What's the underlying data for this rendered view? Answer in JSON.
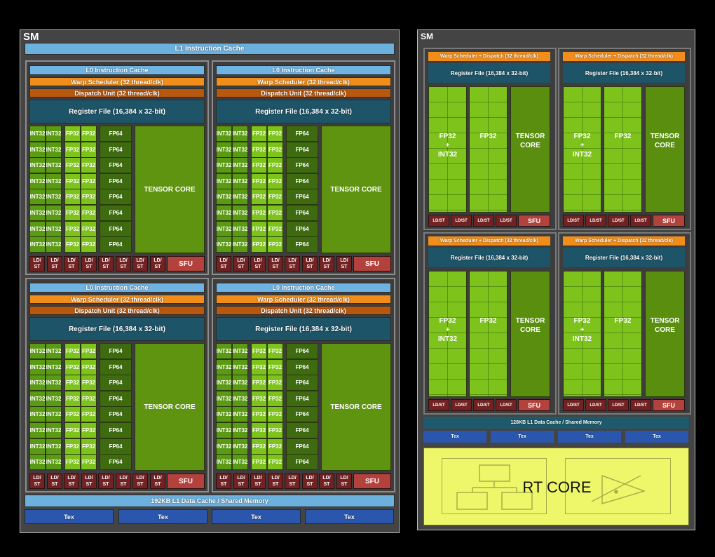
{
  "left_sm": {
    "title": "SM",
    "l1_instruction_cache": "L1 Instruction Cache",
    "processing_blocks": [
      {
        "l0": "L0 Instruction Cache",
        "warp": "Warp Scheduler (32 thread/clk)",
        "dispatch": "Dispatch Unit (32 thread/clk)",
        "register_file": "Register File (16,384 x 32-bit)"
      },
      {
        "l0": "L0 Instruction Cache",
        "warp": "Warp Scheduler (32 thread/clk)",
        "dispatch": "Dispatch Unit (32 thread/clk)",
        "register_file": "Register File (16,384 x 32-bit)"
      },
      {
        "l0": "L0 Instruction Cache",
        "warp": "Warp Scheduler (32 thread/clk)",
        "dispatch": "Dispatch Unit (32 thread/clk)",
        "register_file": "Register File (16,384 x 32-bit)"
      },
      {
        "l0": "L0 Instruction Cache",
        "warp": "Warp Scheduler (32 thread/clk)",
        "dispatch": "Dispatch Unit (32 thread/clk)",
        "register_file": "Register File (16,384 x 32-bit)"
      }
    ],
    "unit_labels": {
      "int32": "INT32",
      "fp32": "FP32",
      "fp64": "FP64",
      "tensor": "TENSOR CORE",
      "ldst_top": "LD/",
      "ldst_bottom": "ST",
      "sfu": "SFU"
    },
    "rows_per_block": 8,
    "ldst_per_block": 8,
    "l1_data_cache": "192KB L1 Data Cache / Shared Memory",
    "tex_units": [
      "Tex",
      "Tex",
      "Tex",
      "Tex"
    ]
  },
  "right_sm": {
    "title": "SM",
    "processing_blocks": [
      {
        "warp": "Warp Scheduler + Dispatch (32 thread/clk)",
        "register_file": "Register File (16,384 x 32-bit)"
      },
      {
        "warp": "Warp Scheduler + Dispatch (32 thread/clk)",
        "register_file": "Register File (16,384 x 32-bit)"
      },
      {
        "warp": "Warp Scheduler + Dispatch (32 thread/clk)",
        "register_file": "Register File (16,384 x 32-bit)"
      },
      {
        "warp": "Warp Scheduler + Dispatch (32 thread/clk)",
        "register_file": "Register File (16,384 x 32-bit)"
      }
    ],
    "unit_labels": {
      "fp32_int32_line1": "FP32",
      "fp32_int32_line2": "+",
      "fp32_int32_line3": "INT32",
      "fp32": "FP32",
      "tensor_line1": "TENSOR",
      "tensor_line2": "CORE",
      "ldst": "LD/ST",
      "sfu": "SFU"
    },
    "ldst_per_block": 4,
    "l1_data_cache": "128KB L1 Data Cache / Shared Memory",
    "tex_units": [
      "Tex",
      "Tex",
      "Tex",
      "Tex"
    ],
    "rt_core": "RT CORE"
  },
  "colors": {
    "sm_background": "#444444",
    "l1_cache": "#6cb0de",
    "warp_scheduler": "#f08d1b",
    "dispatch": "#b8570e",
    "register_file": "#1d5468",
    "int32": "#5b9a14",
    "fp32": "#7dc31c",
    "fp64": "#3e6a10",
    "tensor": "#5e9410",
    "ldst": "#722222",
    "sfu": "#b3413c",
    "tex": "#2a57ad",
    "rt_core": "#eef76a"
  }
}
